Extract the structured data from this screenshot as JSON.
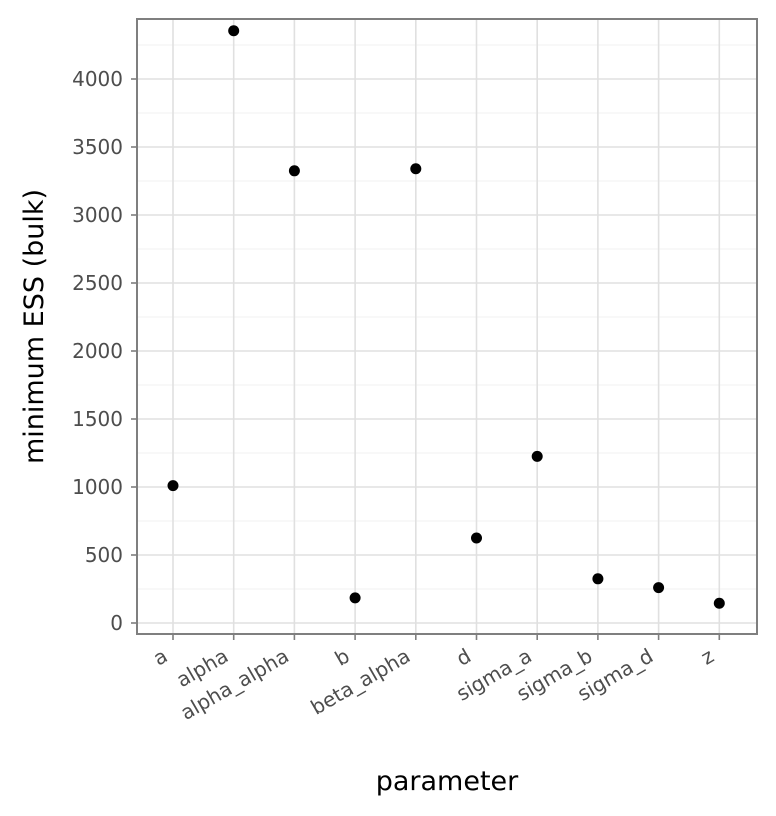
{
  "chart_data": {
    "type": "scatter",
    "title": "",
    "xlabel": "parameter",
    "ylabel": "minimum ESS (bulk)",
    "categories": [
      "a",
      "alpha",
      "alpha_alpha",
      "b",
      "beta_alpha",
      "d",
      "sigma_a",
      "sigma_b",
      "sigma_d",
      "z"
    ],
    "values": [
      1010,
      4355,
      3325,
      185,
      3340,
      625,
      1225,
      325,
      260,
      145
    ],
    "ylim": [
      -80,
      4450
    ],
    "yticks": [
      0,
      500,
      1000,
      1500,
      2000,
      2500,
      3000,
      3500,
      4000
    ],
    "grid": true,
    "legend": "none",
    "point_color": "#000000"
  }
}
